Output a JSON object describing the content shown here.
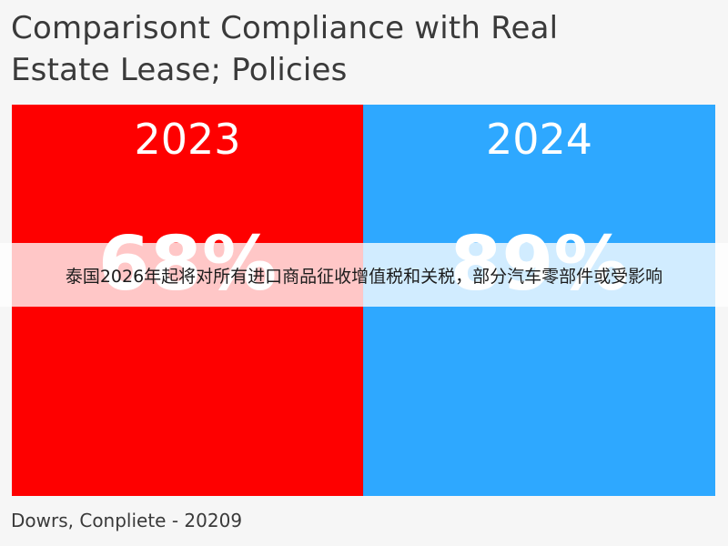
{
  "chart_data": {
    "type": "bar",
    "title": "Comparisont Compliance with Real Estate Lease; Policies",
    "categories": [
      "2023",
      "2024"
    ],
    "values": [
      68,
      89
    ],
    "value_labels": [
      "68%",
      "89%"
    ],
    "colors": [
      "#fe0000",
      "#2ea8ff"
    ],
    "grid": false,
    "legend": "none"
  },
  "overlay": {
    "banner_text": "泰国2026年起将对所有进口商品征收增值税和关税，部分汽车零部件或受影响"
  },
  "footer": {
    "source": "Dowrs, Conpliete - 20209"
  }
}
